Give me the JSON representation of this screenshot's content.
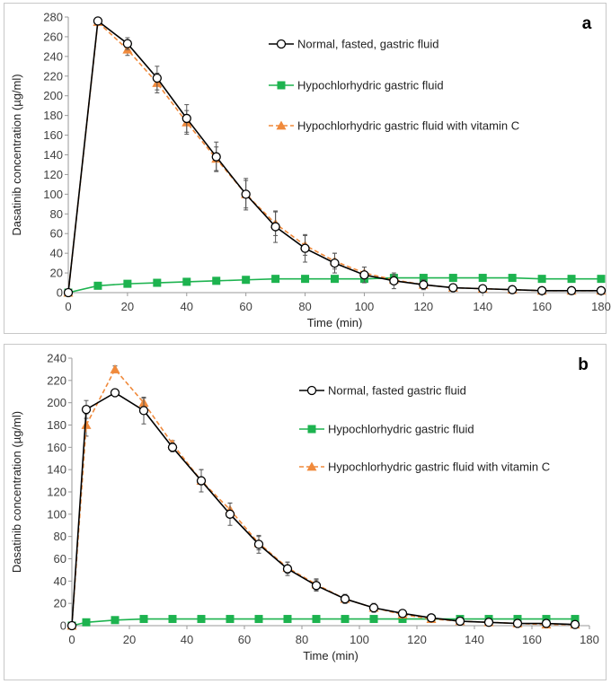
{
  "chart_data": [
    {
      "type": "line",
      "panel_label": "a",
      "xlabel": "Time (min)",
      "ylabel": "Dasatinib concentration (µg/ml)",
      "xlim": [
        0,
        180
      ],
      "ylim": [
        0,
        280
      ],
      "xticks": [
        0,
        20,
        40,
        60,
        80,
        100,
        120,
        140,
        160,
        180
      ],
      "yticks": [
        0,
        20,
        40,
        60,
        80,
        100,
        120,
        140,
        160,
        180,
        200,
        220,
        240,
        260,
        280
      ],
      "legend_position": "top-right",
      "series": [
        {
          "name": "Normal, fasted, gastric fluid",
          "color": "#000000",
          "marker": "open-circle",
          "line": "solid",
          "x": [
            0,
            10,
            20,
            30,
            40,
            50,
            60,
            70,
            80,
            90,
            100,
            110,
            120,
            130,
            140,
            150,
            160,
            170,
            180
          ],
          "y": [
            0,
            276,
            253,
            218,
            177,
            138,
            100,
            67,
            45,
            30,
            18,
            12,
            8,
            5,
            4,
            3,
            2,
            2,
            2
          ],
          "err": [
            0,
            2,
            6,
            12,
            14,
            15,
            16,
            16,
            14,
            10,
            8,
            8,
            5,
            3,
            2,
            1,
            1,
            1,
            1
          ]
        },
        {
          "name": "Hypochlorhydric gastric fluid",
          "color": "#1db34f",
          "marker": "filled-square",
          "line": "solid",
          "x": [
            0,
            10,
            20,
            30,
            40,
            50,
            60,
            70,
            80,
            90,
            100,
            110,
            120,
            130,
            140,
            150,
            160,
            170,
            180
          ],
          "y": [
            0,
            7,
            9,
            10,
            11,
            12,
            13,
            14,
            14,
            14,
            14,
            15,
            15,
            15,
            15,
            15,
            14,
            14,
            14
          ],
          "err": [
            0,
            1,
            1,
            1,
            1,
            1,
            1,
            1,
            1,
            1,
            1,
            1,
            1,
            1,
            1,
            1,
            1,
            1,
            1
          ]
        },
        {
          "name": "Hypochlorhydric gastric fluid with vitamin C",
          "color": "#f08a3c",
          "marker": "filled-triangle",
          "line": "dashed",
          "x": [
            0,
            10,
            20,
            30,
            40,
            50,
            60,
            70,
            80,
            90,
            100,
            110,
            120,
            130,
            140,
            150,
            160,
            170,
            180
          ],
          "y": [
            0,
            275,
            247,
            213,
            173,
            136,
            100,
            70,
            48,
            32,
            20,
            13,
            8,
            5,
            4,
            3,
            2,
            2,
            2
          ],
          "err": [
            0,
            2,
            6,
            10,
            12,
            12,
            14,
            12,
            10,
            8,
            6,
            5,
            4,
            2,
            1,
            1,
            1,
            1,
            1
          ]
        }
      ]
    },
    {
      "type": "line",
      "panel_label": "b",
      "xlabel": "Time (min)",
      "ylabel": "Dasatinib concentration (µg/ml)",
      "xlim": [
        0,
        180
      ],
      "ylim": [
        0,
        240
      ],
      "xticks": [
        0,
        20,
        40,
        60,
        80,
        100,
        120,
        140,
        160,
        180
      ],
      "yticks": [
        0,
        20,
        40,
        60,
        80,
        100,
        120,
        140,
        160,
        180,
        200,
        220,
        240
      ],
      "legend_position": "top-right",
      "series": [
        {
          "name": "Normal, fasted gastric fluid",
          "color": "#000000",
          "marker": "open-circle",
          "line": "solid",
          "x": [
            0,
            5,
            15,
            25,
            35,
            45,
            55,
            65,
            75,
            85,
            95,
            105,
            115,
            125,
            135,
            145,
            155,
            165,
            175
          ],
          "y": [
            0,
            194,
            209,
            193,
            160,
            130,
            100,
            73,
            51,
            36,
            24,
            16,
            11,
            7,
            4,
            3,
            2,
            2,
            1
          ],
          "err": [
            0,
            8,
            3,
            12,
            4,
            10,
            10,
            8,
            6,
            5,
            4,
            4,
            3,
            2,
            1,
            1,
            1,
            1,
            1
          ]
        },
        {
          "name": "Hypochlorhydric gastric fluid",
          "color": "#1db34f",
          "marker": "filled-square",
          "line": "solid",
          "x": [
            0,
            5,
            15,
            25,
            35,
            45,
            55,
            65,
            75,
            85,
            95,
            105,
            115,
            125,
            135,
            145,
            155,
            165,
            175
          ],
          "y": [
            0,
            3,
            5,
            6,
            6,
            6,
            6,
            6,
            6,
            6,
            6,
            6,
            6,
            6,
            6,
            6,
            6,
            6,
            6
          ],
          "err": [
            0,
            1,
            1,
            1,
            1,
            1,
            1,
            1,
            1,
            1,
            1,
            1,
            1,
            1,
            1,
            1,
            1,
            1,
            1
          ]
        },
        {
          "name": "Hypochlorhydric gastric fluid with vitamin C",
          "color": "#f08a3c",
          "marker": "filled-triangle",
          "line": "dashed",
          "x": [
            0,
            5,
            15,
            25,
            35,
            45,
            55,
            65,
            75,
            85,
            95,
            105,
            115,
            125,
            135,
            145,
            155,
            165,
            175
          ],
          "y": [
            0,
            180,
            230,
            200,
            163,
            130,
            104,
            74,
            52,
            37,
            24,
            16,
            10,
            6,
            4,
            3,
            2,
            1,
            1
          ],
          "err": [
            0,
            10,
            3,
            4,
            3,
            10,
            6,
            6,
            5,
            5,
            4,
            3,
            2,
            1,
            1,
            1,
            1,
            1,
            1
          ]
        }
      ]
    }
  ]
}
